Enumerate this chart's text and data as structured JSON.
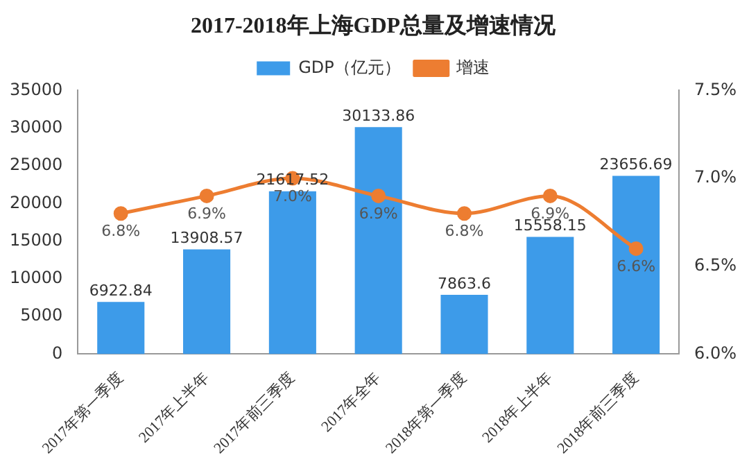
{
  "chart_data": {
    "type": "bar",
    "title": "2017-2018年上海GDP总量及增速情况",
    "categories": [
      "2017年第一季度",
      "2017年上半年",
      "2017年前三季度",
      "2017年全年",
      "2018年第一季度",
      "2018年上半年",
      "2018年前三季度"
    ],
    "series": [
      {
        "name": "GDP（亿元）",
        "color": "#3d9be9",
        "values": [
          6922.84,
          13908.57,
          21617.52,
          30133.86,
          7863.6,
          15558.15,
          23656.69
        ],
        "value_labels": [
          "6922.84",
          "13908.57",
          "21617.52",
          "30133.86",
          "7863.6",
          "15558.15",
          "23656.69"
        ]
      },
      {
        "name": "增速",
        "type": "line",
        "axis": "y2",
        "color": "#ed7d31",
        "values": [
          6.8,
          6.9,
          7.0,
          6.9,
          6.8,
          6.9,
          6.6
        ],
        "value_labels": [
          "6.8%",
          "6.9%",
          "7.0%",
          "6.9%",
          "6.8%",
          "6.9%",
          "6.6%"
        ]
      }
    ],
    "ylim": [
      0,
      35000
    ],
    "yticks": [
      0,
      5000,
      10000,
      15000,
      20000,
      25000,
      30000,
      35000
    ],
    "y2lim": [
      6.0,
      7.5
    ],
    "y2ticks": [
      {
        "value": 6.0,
        "label": "6.0%"
      },
      {
        "value": 6.5,
        "label": "6.5%"
      },
      {
        "value": 7.0,
        "label": "7.0%"
      },
      {
        "value": 7.5,
        "label": "7.5%"
      }
    ],
    "marker": "circle",
    "legend": "top",
    "grid": false
  }
}
